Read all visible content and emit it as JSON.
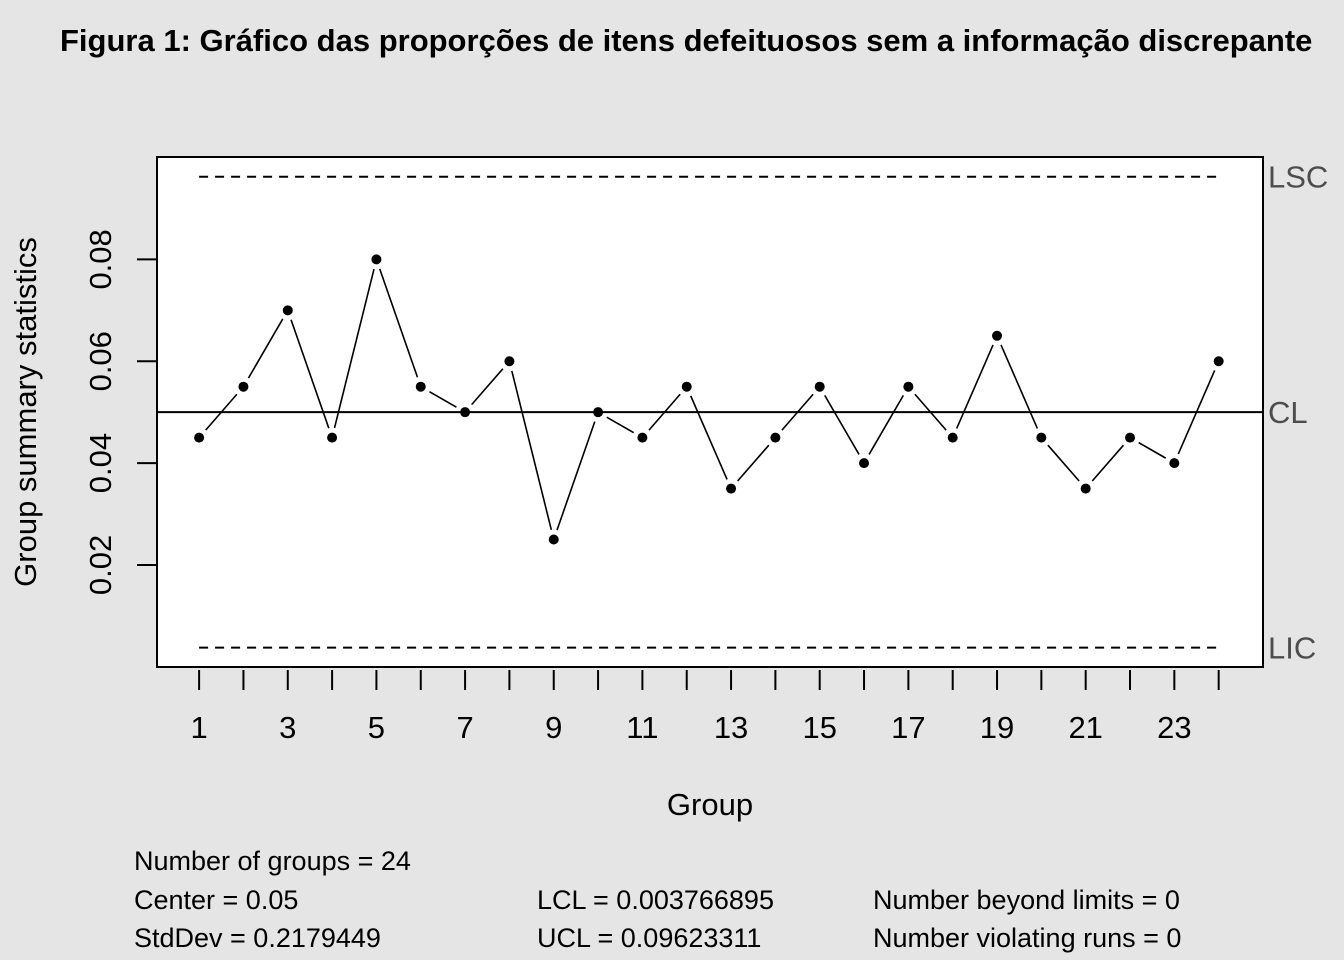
{
  "chart_data": {
    "type": "line",
    "title": "Figura 1: Gráfico das proporções de itens defeituosos sem a informação discrepante",
    "xlabel": "Group",
    "ylabel": "Group summary statistics",
    "x": [
      1,
      2,
      3,
      4,
      5,
      6,
      7,
      8,
      9,
      10,
      11,
      12,
      13,
      14,
      15,
      16,
      17,
      18,
      19,
      20,
      21,
      22,
      23,
      24
    ],
    "values": [
      0.045,
      0.055,
      0.07,
      0.045,
      0.08,
      0.055,
      0.05,
      0.06,
      0.025,
      0.05,
      0.045,
      0.055,
      0.035,
      0.045,
      0.055,
      0.04,
      0.055,
      0.045,
      0.065,
      0.045,
      0.035,
      0.045,
      0.04,
      0.06
    ],
    "x_tick_labels": [
      "1",
      "3",
      "5",
      "7",
      "9",
      "11",
      "13",
      "15",
      "17",
      "19",
      "21",
      "23"
    ],
    "y_ticks": [
      0.02,
      0.04,
      0.06,
      0.08
    ],
    "y_tick_labels": [
      "0.02",
      "0.04",
      "0.06",
      "0.08"
    ],
    "xlim": [
      0.05,
      25.0
    ],
    "ylim": [
      -3.35e-05,
      0.1001025
    ],
    "center_line": {
      "value": 0.05,
      "label": "CL"
    },
    "upper_limit": {
      "value": 0.09623311,
      "label": "LSC"
    },
    "lower_limit": {
      "value": 0.003766895,
      "label": "LIC"
    },
    "grid": false
  },
  "stats": {
    "groups": "Number of groups = 24",
    "center": "Center = 0.05",
    "stddev": "StdDev = 0.2179449",
    "lcl": "LCL = 0.003766895",
    "ucl": "UCL = 0.09623311",
    "beyond": "Number beyond limits = 0",
    "violating": "Number violating runs = 0"
  }
}
